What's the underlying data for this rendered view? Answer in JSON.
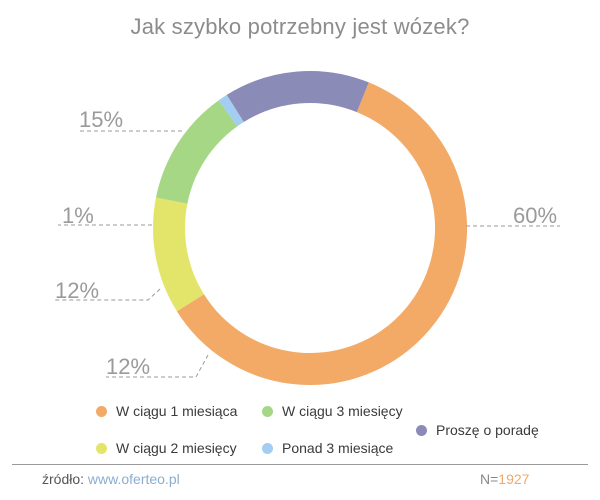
{
  "chart_data": {
    "type": "pie",
    "title": "Jak szybko potrzebny jest wózek?",
    "slices": [
      {
        "name": "W ciągu 1 miesiąca",
        "value": 60,
        "label": "60%",
        "color": "#f2aa66"
      },
      {
        "name": "W ciągu 2 miesięcy",
        "value": 12,
        "label": "12%",
        "color": "#e3e56b"
      },
      {
        "name": "W ciągu 3 miesięcy",
        "value": 12,
        "label": "12%",
        "color": "#a6d785"
      },
      {
        "name": "Ponad 3 miesiące",
        "value": 1,
        "label": "1%",
        "color": "#a3cdf1"
      },
      {
        "name": "Proszę o poradę",
        "value": 15,
        "label": "15%",
        "color": "#8b8bb8"
      }
    ],
    "legend": [
      {
        "label": "W ciągu 1 miesiąca",
        "color": "#f2aa66"
      },
      {
        "label": "W ciągu 3 miesięcy",
        "color": "#a6d785"
      },
      {
        "label": "Proszę o poradę",
        "color": "#8b8bb8"
      },
      {
        "label": "W ciągu 2 miesięcy",
        "color": "#e3e56b"
      },
      {
        "label": "Ponad 3 miesiące",
        "color": "#a3cdf1"
      }
    ]
  },
  "footer": {
    "source_label": "źródło:",
    "source_url": "www.oferteo.pl",
    "n_label": "N=",
    "n_value": "1927"
  }
}
